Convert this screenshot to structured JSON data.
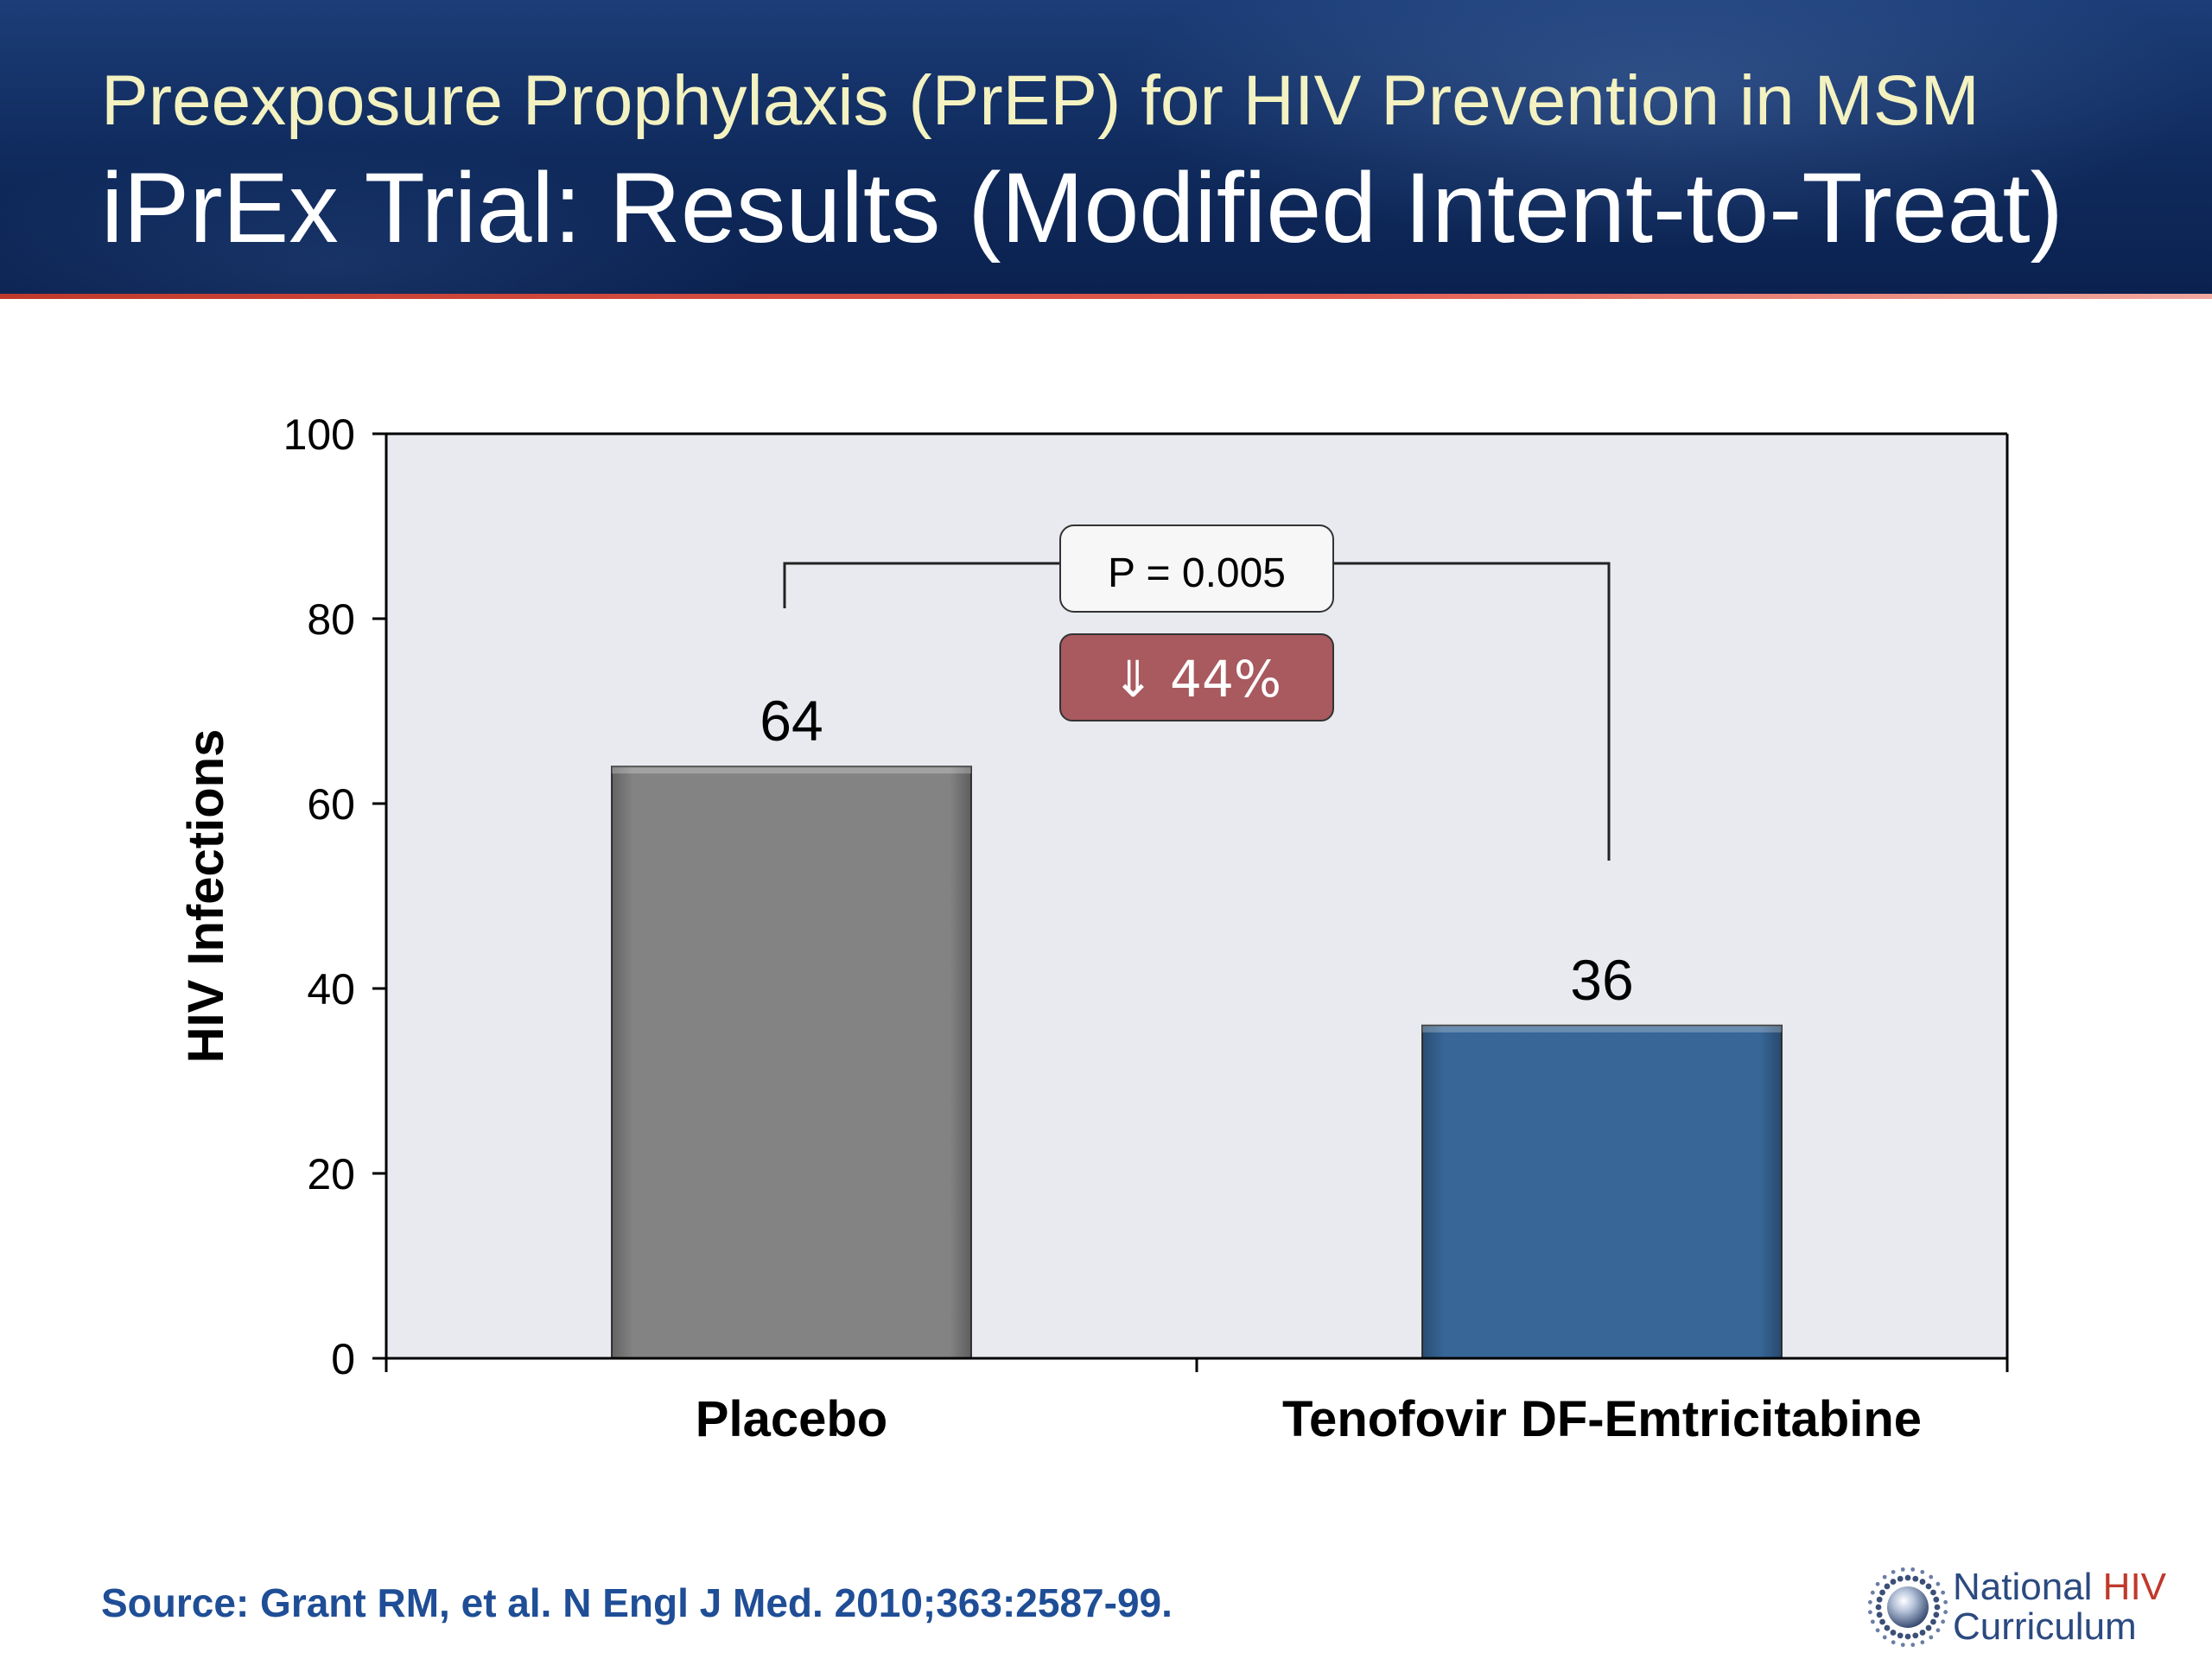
{
  "header": {
    "subtitle": "Preexposure Prophylaxis (PrEP) for HIV Prevention in MSM",
    "title": "iPrEx Trial: Results (Modified Intent-to-Treat)"
  },
  "chart_data": {
    "type": "bar",
    "categories": [
      "Placebo",
      "Tenofovir DF-Emtricitabine"
    ],
    "values": [
      64,
      36
    ],
    "data_labels": [
      "64",
      "36"
    ],
    "bar_colors": [
      "#8a8a8a",
      "#3a6b9f"
    ],
    "ylabel": "HIV Infections",
    "xlabel": "",
    "ylim": [
      0,
      100
    ],
    "yticks": [
      0,
      20,
      40,
      60,
      80,
      100
    ],
    "grid": false,
    "plot_background": "#e8eaf0",
    "annotations": {
      "p_value": "P = 0.005",
      "reduction": "⇓ 44%",
      "reduction_color": "#a85a5e"
    }
  },
  "footer": {
    "source": "Source: Grant RM, et al.  N Engl J Med. 2010;363:2587-99.",
    "logo_line1_a": "National ",
    "logo_line1_b": "HIV",
    "logo_line2": "Curriculum",
    "logo_icon": "sunburst-logo-icon"
  }
}
